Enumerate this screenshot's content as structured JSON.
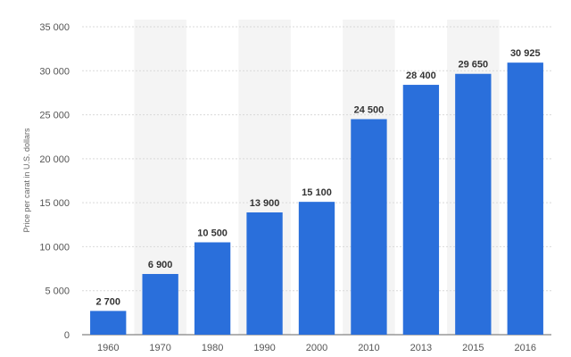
{
  "chart_data": {
    "type": "bar",
    "categories": [
      "1960",
      "1970",
      "1980",
      "1990",
      "2000",
      "2010",
      "2013",
      "2015",
      "2016"
    ],
    "values": [
      2700,
      6900,
      10500,
      13900,
      15100,
      24500,
      28400,
      29650,
      30925
    ],
    "value_labels": [
      "2 700",
      "6 900",
      "10 500",
      "13 900",
      "15 100",
      "24 500",
      "28 400",
      "29 650",
      "30 925"
    ],
    "yticks": [
      0,
      5000,
      10000,
      15000,
      20000,
      25000,
      30000,
      35000
    ],
    "ytick_labels": [
      "0",
      "5 000",
      "10 000",
      "15 000",
      "20 000",
      "25 000",
      "30 000",
      "35 000"
    ],
    "ylim": [
      0,
      35000
    ],
    "title": "",
    "xlabel": "",
    "ylabel": "Price per carat in U.S. dollars",
    "grid": true,
    "legend": "none",
    "colors": {
      "bar": "#2a6fdb",
      "band": "#f4f4f4",
      "grid": "#d9d9d9",
      "axis": "#666666"
    }
  }
}
